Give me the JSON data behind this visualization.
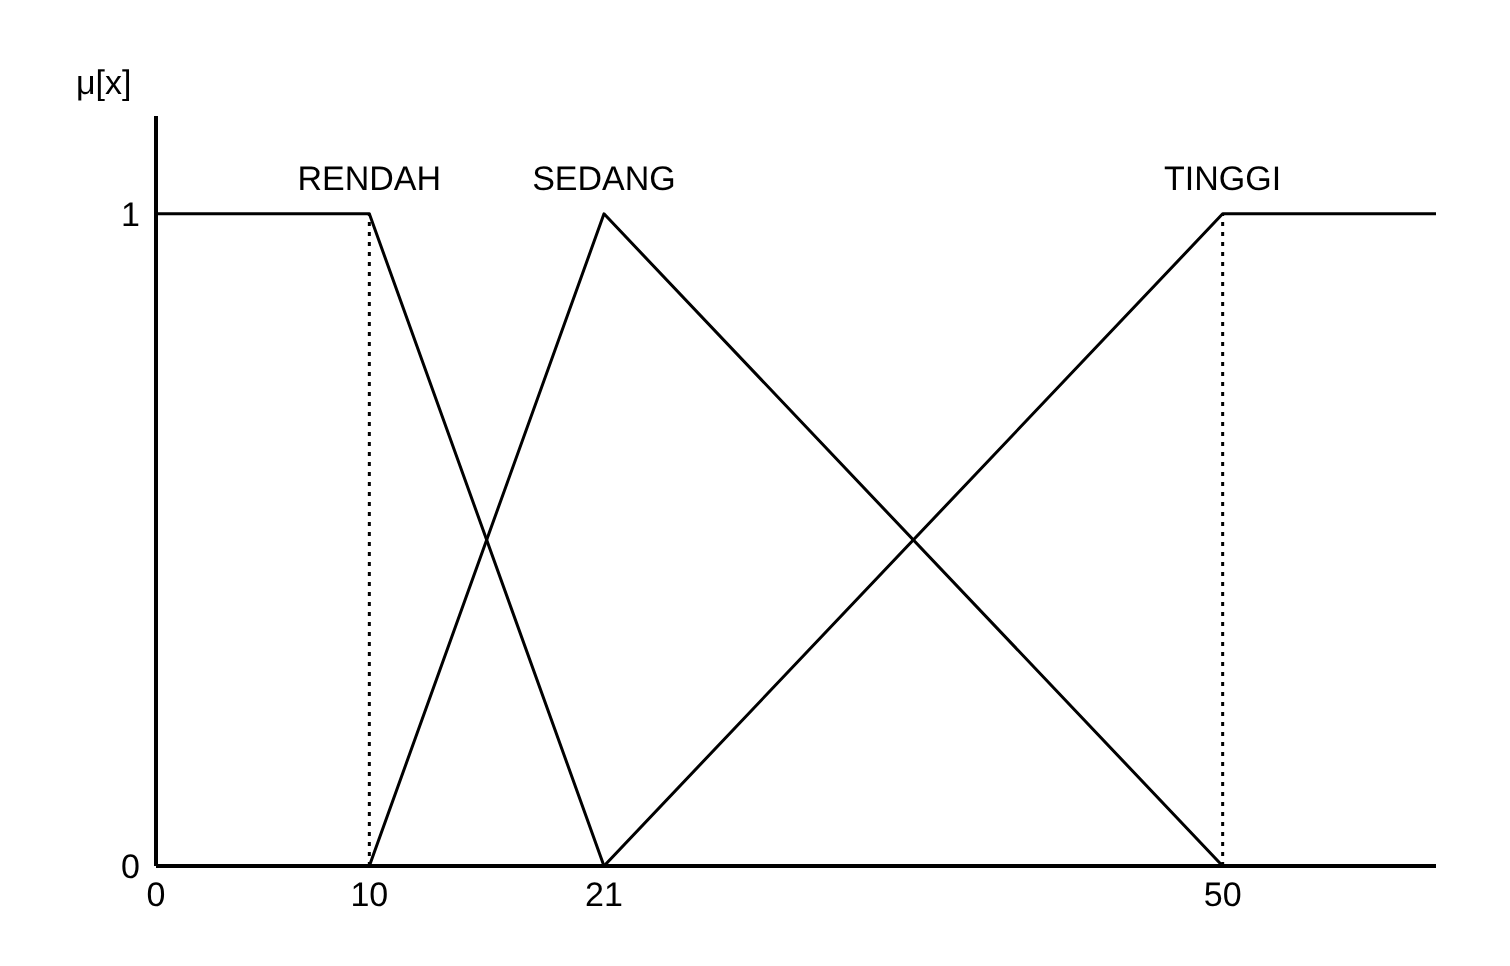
{
  "chart_data": {
    "type": "line",
    "ylabel": "μ[x]",
    "xlim": [
      0,
      60
    ],
    "xticks": [
      0,
      10,
      21,
      50
    ],
    "ylim": [
      0,
      1.15
    ],
    "yticks": [
      0,
      1
    ],
    "grid": false,
    "legend": false,
    "marker": "none",
    "line_style": "solid",
    "series": [
      {
        "name": "RENDAH",
        "color": "#000000",
        "x": [
          0,
          10,
          21
        ],
        "values": [
          1,
          1,
          0
        ]
      },
      {
        "name": "SEDANG",
        "color": "#000000",
        "x": [
          10,
          21,
          50
        ],
        "values": [
          0,
          1,
          0
        ]
      },
      {
        "name": "TINGGI",
        "color": "#000000",
        "x": [
          21,
          50,
          60
        ],
        "values": [
          0,
          1,
          1
        ]
      }
    ],
    "ref_lines": [
      {
        "axis": "x",
        "value": 10,
        "color": "#000000",
        "line_style": "dotted"
      },
      {
        "axis": "x",
        "value": 50,
        "color": "#000000",
        "line_style": "dotted"
      }
    ]
  }
}
